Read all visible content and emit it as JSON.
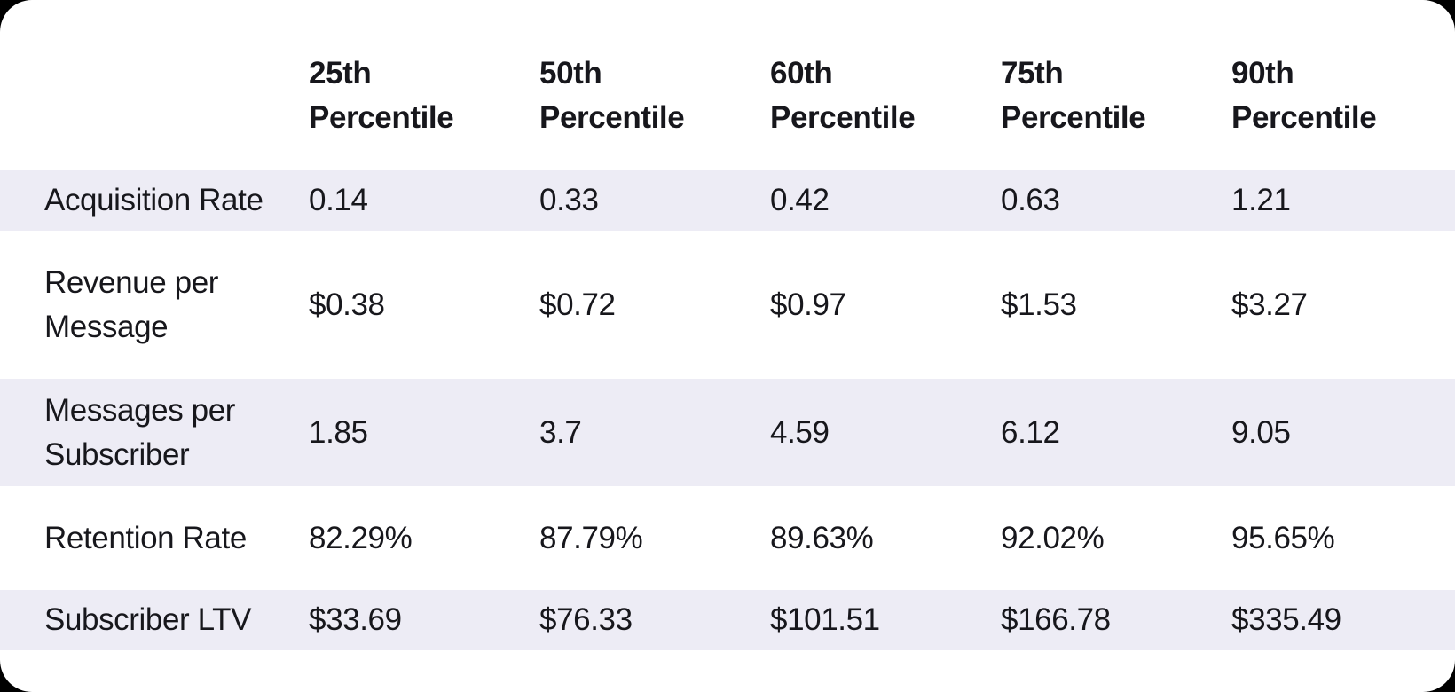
{
  "chart_data": {
    "type": "table",
    "columns": [
      "25th Percentile",
      "50th Percentile",
      "60th Percentile",
      "75th Percentile",
      "90th Percentile"
    ],
    "rows": [
      {
        "label": "Acquisition Rate",
        "values": [
          "0.14",
          "0.33",
          "0.42",
          "0.63",
          "1.21"
        ]
      },
      {
        "label": "Revenue per Message",
        "values": [
          "$0.38",
          "$0.72",
          "$0.97",
          "$1.53",
          "$3.27"
        ]
      },
      {
        "label": "Messages per Subscriber",
        "values": [
          "1.85",
          "3.7",
          "4.59",
          "6.12",
          "9.05"
        ]
      },
      {
        "label": "Retention Rate",
        "values": [
          "82.29%",
          "87.79%",
          "89.63%",
          "92.02%",
          "95.65%"
        ]
      },
      {
        "label": "Subscriber LTV",
        "values": [
          "$33.69",
          "$76.33",
          "$101.51",
          "$166.78",
          "$335.49"
        ]
      }
    ],
    "layout": {
      "striped_row_indexes": [
        0,
        2,
        4
      ],
      "legend": "none",
      "grid": "off"
    }
  },
  "colors": {
    "page_bg": "#000000",
    "card_bg": "#ffffff",
    "stripe": "#edecf5",
    "text": "#17171c"
  }
}
